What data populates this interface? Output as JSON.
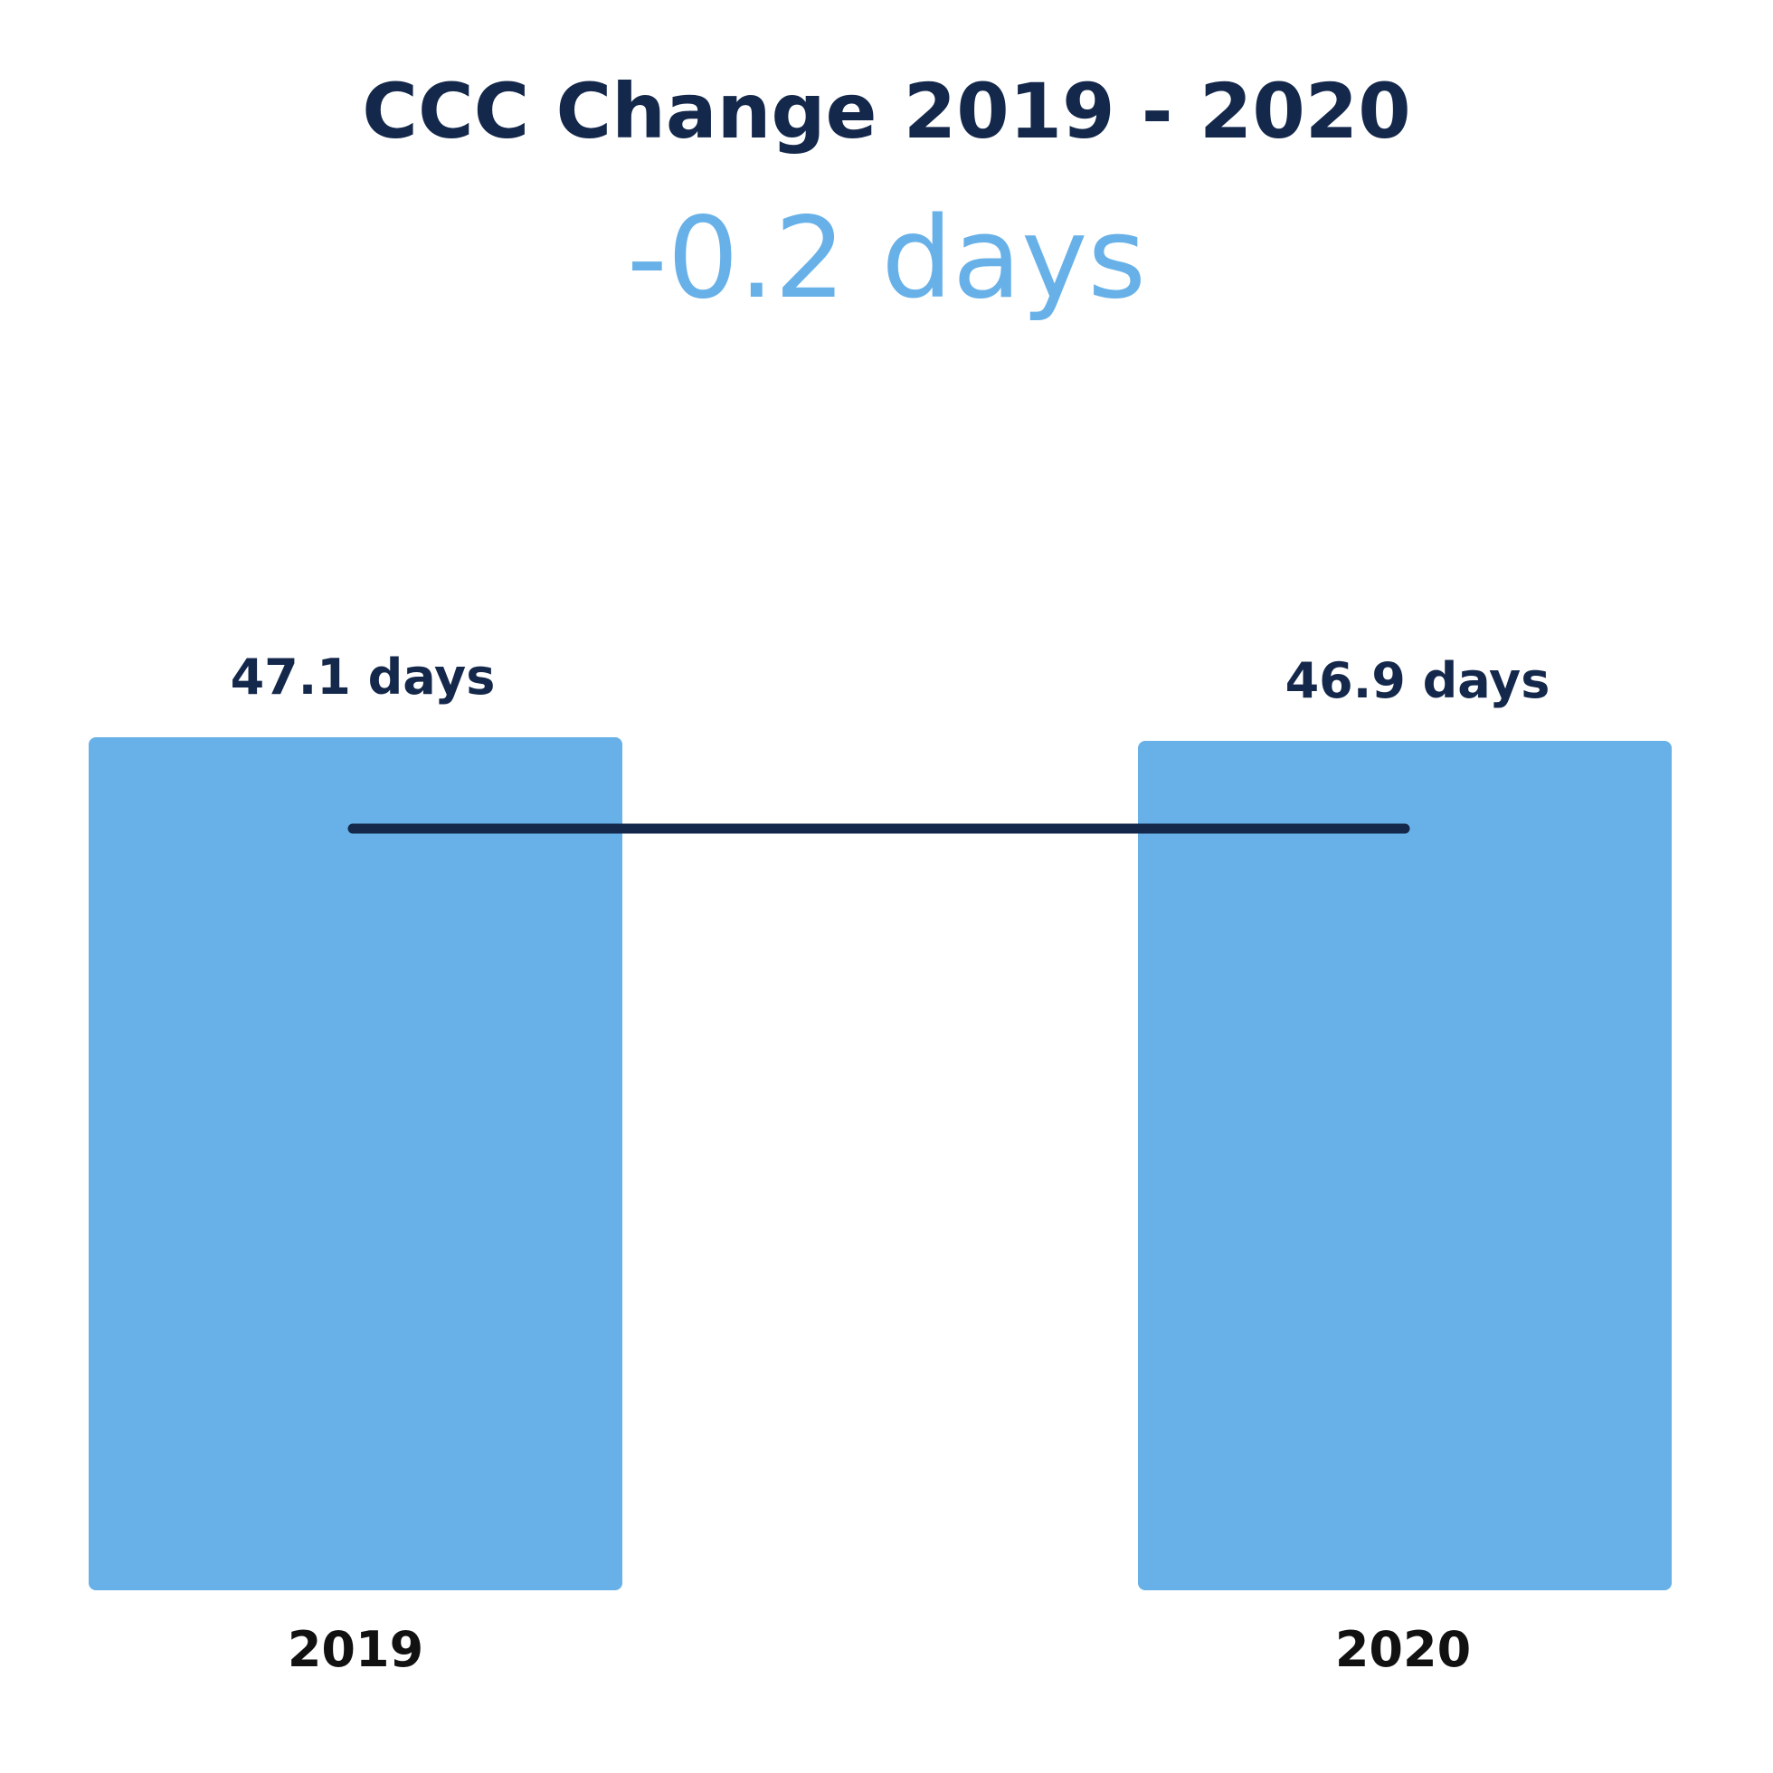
{
  "chart_data": {
    "type": "bar",
    "title": "CCC Change 2019 - 2020",
    "subtitle": "-0.2 days",
    "categories": [
      "2019",
      "2020"
    ],
    "values": [
      47.1,
      46.9
    ],
    "data_labels": [
      "47.1 days",
      "46.9 days"
    ],
    "unit": "days",
    "xlabel": "",
    "ylabel": "",
    "grid": false,
    "legend": "none",
    "reference_line": true,
    "colors": {
      "bar": "#68b1e8",
      "title": "#14284b",
      "subtitle": "#68b1e8",
      "data_label": "#14284b",
      "tick_label": "#111111",
      "line": "#14284b"
    }
  }
}
